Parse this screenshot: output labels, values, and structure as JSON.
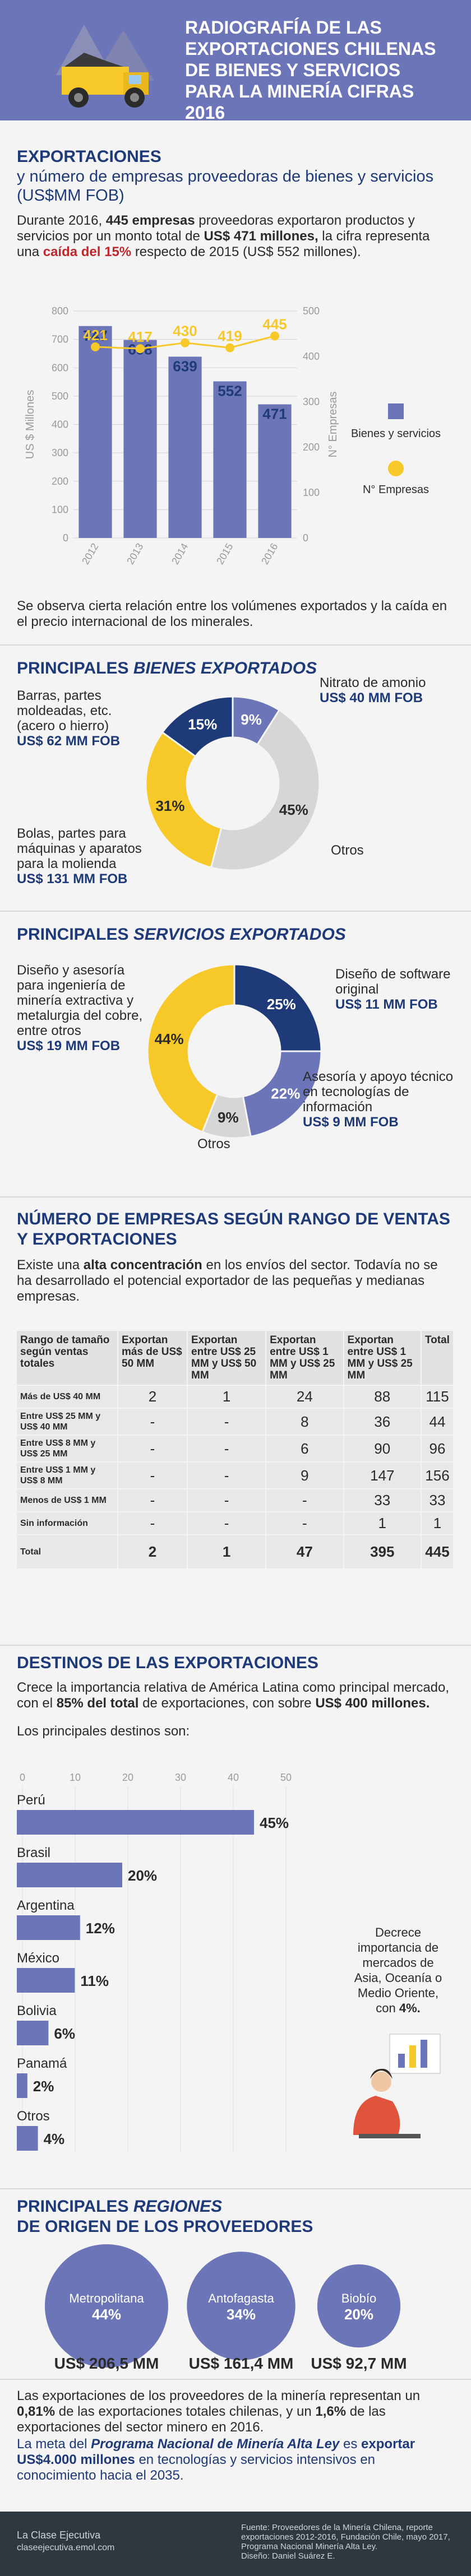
{
  "header": {
    "title": "Radiografía de las exportaciones chilenas de bienes y servicios para la minería cifras 2016"
  },
  "exports": {
    "title": "Exportaciones",
    "subtitle": "y número de empresas proveedoras de bienes y servicios (US$MM FOB)",
    "p1": "Durante 2016,",
    "p1b": "445 empresas",
    "p2": "proveedoras exportaron productos y servicios por un monto total de",
    "p2b": "US$ 471 millones,",
    "p3": "la cifra representa una",
    "p3r": "caída del 15%",
    "p4": "respecto de 2015 (US$ 552 millones).",
    "note": "Se observa cierta relación entre los volúmenes exportados y la caída en el precio internacional de los minerales."
  },
  "chart_data": [
    {
      "type": "bar",
      "categories": [
        "2012",
        "2013",
        "2014",
        "2015",
        "2016"
      ],
      "series": [
        {
          "name": "Bienes y servicios",
          "type": "bar",
          "axis": "left",
          "values": [
            747,
            698,
            639,
            552,
            471
          ],
          "color": "#6b75b7"
        },
        {
          "name": "N° Empresas",
          "type": "line",
          "axis": "right",
          "values": [
            421,
            417,
            430,
            419,
            445
          ],
          "color": "#f7c928"
        }
      ],
      "ylabel": "US $ Millones",
      "y2label": "N° Empresas",
      "ylim": [
        0,
        800
      ],
      "y2lim": [
        0,
        500
      ],
      "yticks": [
        "0",
        "100",
        "200",
        "300",
        "400",
        "500",
        "600",
        "700",
        "800"
      ],
      "y2ticks": [
        "0",
        "100",
        "200",
        "300",
        "400",
        "500"
      ],
      "legend": "right"
    },
    {
      "type": "pie",
      "title": "Principales bienes exportados",
      "slices": [
        {
          "label": "Nitrato de amonio",
          "amount": "US$ 40 MM FOB",
          "value": 9,
          "pct": "9%",
          "color": "#6b75b7"
        },
        {
          "label": "Otros",
          "amount": "",
          "value": 45,
          "pct": "45%",
          "color": "#d6d6d6"
        },
        {
          "label": "Bolas, partes para máquinas y aparatos para la molienda",
          "amount": "US$ 131 MM FOB",
          "value": 31,
          "pct": "31%",
          "color": "#f7c928"
        },
        {
          "label": "Barras, partes moldeadas, etc. (acero o hierro)",
          "amount": "US$ 62 MM FOB",
          "value": 15,
          "pct": "15%",
          "color": "#1f3a78"
        }
      ]
    },
    {
      "type": "pie",
      "title": "Principales servicios exportados",
      "slices": [
        {
          "label": "Diseño de software original",
          "amount": "US$ 11 MM FOB",
          "value": 25,
          "pct": "25%",
          "color": "#1f3a78"
        },
        {
          "label": "Asesoría y apoyo técnico en tecnologías de información",
          "amount": "US$ 9 MM FOB",
          "value": 22,
          "pct": "22%",
          "color": "#6b75b7"
        },
        {
          "label": "Otros",
          "amount": "",
          "value": 9,
          "pct": "9%",
          "color": "#d6d6d6"
        },
        {
          "label": "Diseño y asesoría para ingeniería de minería extractiva y metalurgia del cobre, entre otros",
          "amount": "US$ 19 MM FOB",
          "value": 44,
          "pct": "44%",
          "color": "#f7c928"
        }
      ]
    },
    {
      "type": "table",
      "title": "Número de empresas según rango de ventas y exportaciones",
      "columns": [
        "Rango de tamaño según ventas totales",
        "Exportan más de US$ 50 MM",
        "Exportan entre US$ 25 MM y US$ 50 MM",
        "Exportan entre US$ 1 MM y US$ 25 MM",
        "Exportan entre US$ 1 MM y US$ 25 MM",
        "Total"
      ],
      "rows": [
        [
          "Más de US$ 40 MM",
          "2",
          "1",
          "24",
          "88",
          "115"
        ],
        [
          "Entre US$ 25 MM y US$ 40 MM",
          "-",
          "-",
          "8",
          "36",
          "44"
        ],
        [
          "Entre US$ 8 MM y US$ 25 MM",
          "-",
          "-",
          "6",
          "90",
          "96"
        ],
        [
          "Entre US$ 1 MM y US$ 8 MM",
          "-",
          "-",
          "9",
          "147",
          "156"
        ],
        [
          "Menos de US$ 1 MM",
          "-",
          "-",
          "-",
          "33",
          "33"
        ],
        [
          "Sin información",
          "-",
          "-",
          "-",
          "1",
          "1"
        ],
        [
          "Total",
          "2",
          "1",
          "47",
          "395",
          "445"
        ]
      ]
    },
    {
      "type": "bar",
      "orientation": "horizontal",
      "title": "Los principales destinos son:",
      "categories": [
        "Perú",
        "Brasil",
        "Argentina",
        "México",
        "Bolivia",
        "Panamá",
        "Otros"
      ],
      "values": [
        45,
        20,
        12,
        11,
        6,
        2,
        4
      ],
      "labels": [
        "45%",
        "20%",
        "12%",
        "11%",
        "6%",
        "2%",
        "4%"
      ],
      "xticks": [
        "0",
        "10",
        "20",
        "30",
        "40",
        "50"
      ],
      "xlim": [
        0,
        50
      ],
      "color": "#6b75b7"
    },
    {
      "type": "bubble",
      "title": "Principales regiones de origen de los proveedores",
      "items": [
        {
          "name": "Metropolitana",
          "pct": "44%",
          "value": 44,
          "amount": "US$ 206,5 MM"
        },
        {
          "name": "Antofagasta",
          "pct": "34%",
          "value": 34,
          "amount": "US$ 161,4 MM"
        },
        {
          "name": "Biobío",
          "pct": "20%",
          "value": 20,
          "amount": "US$ 92,7 MM"
        }
      ]
    }
  ],
  "goods": {
    "title_a": "Principales",
    "title_b": "bienes exportados"
  },
  "services": {
    "title_a": "Principales",
    "title_b": "servicios exportados"
  },
  "ranges": {
    "title": "Número de empresas según rango de ventas y exportaciones",
    "p1": "Existe una",
    "p1b": "alta concentración",
    "p2": "en los envíos del sector. Todavía no se ha desarrollado el potencial exportador de las pequeñas y medianas empresas."
  },
  "destinations": {
    "title": "Destinos de las exportaciones",
    "p1": "Crece la importancia relativa de América Latina como principal mercado, con el",
    "p1b": "85% del total",
    "p2": "de exportaciones, con sobre",
    "p2b": "US$ 400 millones.",
    "lead": "Los principales destinos son:",
    "side_note": "Decrece importancia de mercados de Asia, Oceanía o Medio Oriente, con",
    "side_note_b": "4%."
  },
  "regions": {
    "title_a": "Principales",
    "title_b": "regiones",
    "title_c": "de origen de los proveedores"
  },
  "closing": {
    "p1": "Las exportaciones de los proveedores de la minería representan un",
    "p1b": "0,81%",
    "p2": "de las exportaciones totales chilenas, y un",
    "p2b": "1,6%",
    "p3": "de las exportaciones del sector minero en 2016.",
    "g1": "La meta del",
    "g1b": "Programa Nacional de Minería Alta Ley",
    "g2": "es",
    "g2b": "exportar US$4.000 millones",
    "g3": "en tecnologías y servicios intensivos en conocimiento hacia el 2035."
  },
  "footer": {
    "brand": "La Clase Ejecutiva",
    "email": "claseejecutiva.emol.com",
    "source": "Fuente: Proveedores de la Minería Chilena, reporte exportaciones 2012-2016, Fundación Chile, mayo 2017, Programa Nacional Minería Alta Ley.",
    "design": "Diseño: Daniel Suárez E."
  }
}
